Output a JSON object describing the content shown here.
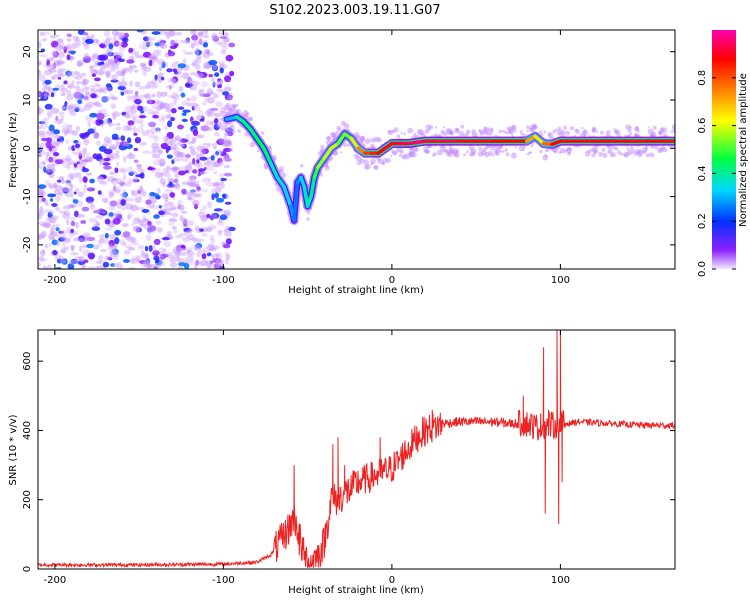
{
  "title": "S102.2023.003.19.11.G07",
  "chart_data": [
    {
      "type": "heatmap",
      "xlabel": "Height of straight line (km)",
      "ylabel": "Frequency (Hz)",
      "xlim": [
        -210,
        168
      ],
      "ylim": [
        -25,
        24.5
      ],
      "xticks": [
        -200,
        -100,
        0,
        100
      ],
      "yticks": [
        -20,
        -10,
        0,
        10,
        20
      ],
      "grid": false,
      "colorbar": {
        "label": "Normalized spectral amplitude",
        "range": [
          0.0,
          1.0
        ],
        "ticks": [
          0.0,
          0.2,
          0.4,
          0.6,
          0.8
        ],
        "tick_labels": [
          "0.0",
          "0.2",
          "0.4",
          "0.6",
          "0.8"
        ],
        "colormap": [
          "#f2e6ff",
          "#7a00ff",
          "#0033ff",
          "#00d8ff",
          "#00ff40",
          "#ffff00",
          "#ff7f00",
          "#ff0000",
          "#ff00b0"
        ]
      },
      "noise_region": {
        "x": [
          -210,
          -95
        ],
        "y": [
          -25,
          24.5
        ],
        "amplitude": [
          0.05,
          0.3
        ]
      },
      "ridge": {
        "x": [
          -98,
          -92,
          -88,
          -84,
          -80,
          -76,
          -72,
          -68,
          -64,
          -60,
          -58,
          -56,
          -54,
          -52,
          -50,
          -48,
          -46,
          -44,
          -40,
          -36,
          -32,
          -28,
          -24,
          -20,
          -16,
          -12,
          -8,
          -4,
          0,
          5,
          10,
          20,
          40,
          60,
          80,
          85,
          90,
          95,
          100,
          120,
          140,
          168
        ],
        "y": [
          6,
          6.5,
          5.5,
          4,
          2,
          0,
          -3,
          -6,
          -8,
          -12,
          -15,
          -7,
          -6,
          -8,
          -12,
          -10,
          -6,
          -4,
          -2,
          0,
          1,
          3,
          2,
          0,
          -1,
          -1,
          -1,
          0,
          1,
          1,
          1,
          1.5,
          1.5,
          1.5,
          1.5,
          2.5,
          1,
          0.8,
          1.5,
          1.5,
          1.5,
          1.5
        ],
        "amplitude": [
          0.3,
          0.4,
          0.5,
          0.45,
          0.5,
          0.5,
          0.45,
          0.4,
          0.4,
          0.35,
          0.3,
          0.3,
          0.35,
          0.4,
          0.45,
          0.4,
          0.5,
          0.55,
          0.6,
          0.6,
          0.6,
          0.5,
          0.6,
          0.7,
          0.8,
          0.85,
          0.85,
          0.9,
          0.9,
          0.9,
          0.95,
          0.95,
          0.9,
          0.9,
          0.85,
          0.6,
          0.7,
          0.85,
          0.9,
          0.9,
          0.9,
          0.9
        ]
      }
    },
    {
      "type": "line",
      "xlabel": "Height of straight line (km)",
      "ylabel": "SNR (10 * v/v)",
      "xlim": [
        -210,
        168
      ],
      "ylim": [
        0,
        690
      ],
      "xticks": [
        -200,
        -100,
        0,
        100
      ],
      "yticks": [
        0,
        200,
        400,
        600
      ],
      "grid": false,
      "line_color": "#ee2222",
      "x": [
        -210,
        -150,
        -100,
        -80,
        -72,
        -66,
        -62,
        -58,
        -55,
        -53,
        -51,
        -48,
        -44,
        -40,
        -36,
        -32,
        -28,
        -24,
        -20,
        -15,
        -10,
        -5,
        0,
        5,
        10,
        15,
        20,
        25,
        30,
        40,
        50,
        60,
        70,
        80,
        86,
        90,
        96,
        100,
        105,
        110,
        130,
        150,
        168
      ],
      "y": [
        12,
        12,
        14,
        20,
        40,
        80,
        110,
        150,
        100,
        50,
        30,
        25,
        35,
        80,
        200,
        200,
        220,
        230,
        250,
        260,
        270,
        280,
        290,
        320,
        350,
        380,
        400,
        410,
        420,
        425,
        425,
        425,
        420,
        420,
        410,
        415,
        415,
        420,
        420,
        425,
        420,
        415,
        415
      ],
      "spikes": [
        {
          "x": -58,
          "y": 300
        },
        {
          "x": -55,
          "y": 40
        },
        {
          "x": -35,
          "y": 360
        },
        {
          "x": -32,
          "y": 380
        },
        {
          "x": -28,
          "y": 300
        },
        {
          "x": -7,
          "y": 380
        },
        {
          "x": 24,
          "y": 460
        },
        {
          "x": 78,
          "y": 500
        },
        {
          "x": 85,
          "y": 430
        },
        {
          "x": 90,
          "y": 640
        },
        {
          "x": 91,
          "y": 160
        },
        {
          "x": 93,
          "y": 460
        },
        {
          "x": 98,
          "y": 690
        },
        {
          "x": 99,
          "y": 130
        },
        {
          "x": 100,
          "y": 690
        },
        {
          "x": 101,
          "y": 250
        }
      ]
    }
  ]
}
